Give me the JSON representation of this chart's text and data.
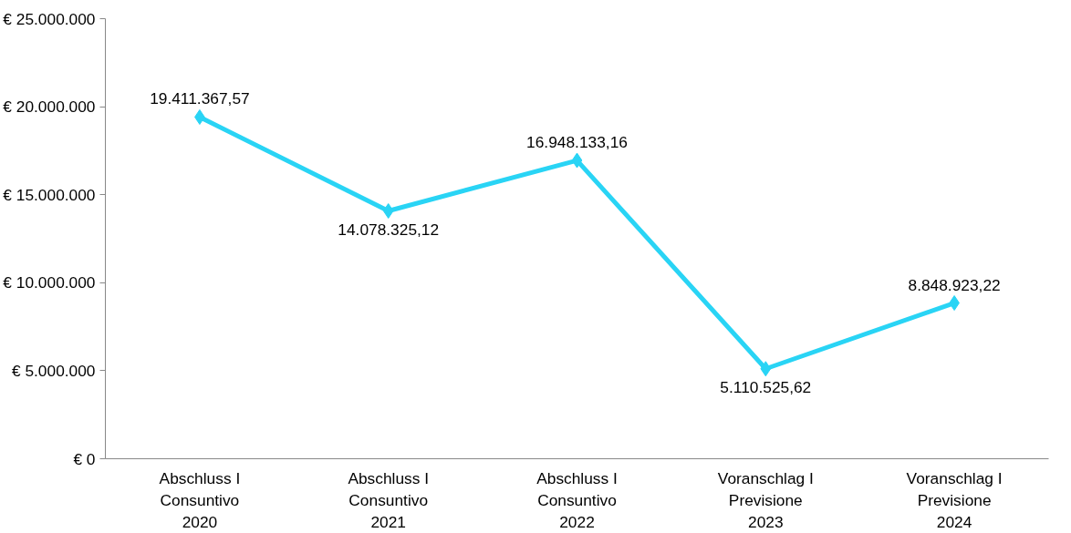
{
  "chart_data": {
    "type": "line",
    "categories": [
      "Abschluss I\nConsuntivo\n2020",
      "Abschluss I\nConsuntivo\n2021",
      "Abschluss I\nConsuntivo\n2022",
      "Voranschlag I\nPrevisione\n2023",
      "Voranschlag I\nPrevisione\n2024"
    ],
    "series": [
      {
        "color": "#29d4f5",
        "values": [
          19411367.57,
          14078325.12,
          16948133.16,
          5110525.62,
          8848923.22
        ],
        "value_labels": [
          "19.411.367,57",
          "14.078.325,12",
          "16.948.133,16",
          "5.110.525,62",
          "8.848.923,22"
        ]
      }
    ],
    "ylim": [
      0,
      25000000
    ],
    "yticks": [
      {
        "value": 0,
        "label": "€ 0"
      },
      {
        "value": 5000000,
        "label": "€ 5.000.000"
      },
      {
        "value": 10000000,
        "label": "€ 10.000.000"
      },
      {
        "value": 15000000,
        "label": "€ 15.000.000"
      },
      {
        "value": 20000000,
        "label": "€ 20.000.000"
      },
      {
        "value": 25000000,
        "label": "€ 25.000.000"
      }
    ],
    "grid": false,
    "marker": "diamond",
    "line_style": "solid"
  }
}
